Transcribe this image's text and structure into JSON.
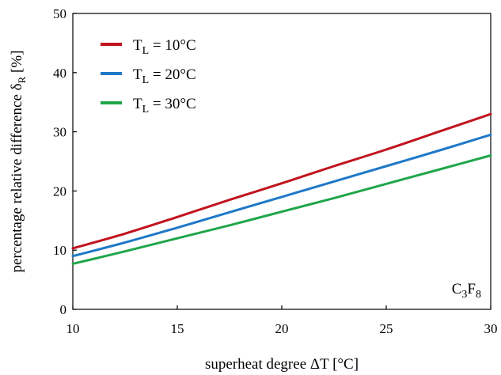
{
  "chart_data": {
    "type": "line",
    "xlabel": "superheat degree ΔT [°C]",
    "ylabel": "percentage relative difference δR [%]",
    "xlim": [
      10,
      30
    ],
    "ylim": [
      0,
      50
    ],
    "xticks": [
      10,
      15,
      20,
      25,
      30
    ],
    "yticks": [
      0,
      10,
      20,
      30,
      40,
      50
    ],
    "grid": false,
    "legend_position": "top-left",
    "annotation": "C3F8",
    "series": [
      {
        "name": "TL = 10°C",
        "color": "#c0141e",
        "x": [
          10,
          12.5,
          15,
          17.5,
          20,
          22.5,
          25,
          27.5,
          30
        ],
        "y": [
          10.3,
          12.8,
          15.6,
          18.5,
          21.3,
          24.2,
          27.0,
          30.0,
          33.0
        ]
      },
      {
        "name": "TL = 20°C",
        "color": "#1f78c8",
        "x": [
          10,
          12.5,
          15,
          17.5,
          20,
          22.5,
          25,
          27.5,
          30
        ],
        "y": [
          9.0,
          11.3,
          13.8,
          16.4,
          19.0,
          21.6,
          24.2,
          26.8,
          29.5
        ]
      },
      {
        "name": "TL = 30°C",
        "color": "#1fa64a",
        "x": [
          10,
          12.5,
          15,
          17.5,
          20,
          22.5,
          25,
          27.5,
          30
        ],
        "y": [
          7.7,
          9.8,
          12.0,
          14.2,
          16.5,
          18.8,
          21.2,
          23.6,
          26.0
        ]
      }
    ]
  }
}
